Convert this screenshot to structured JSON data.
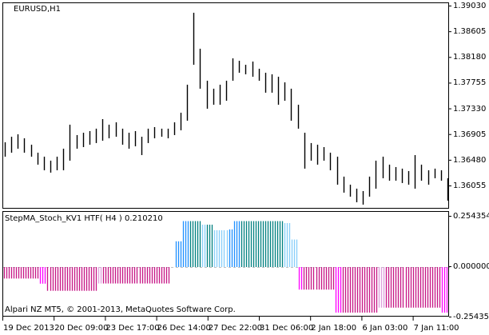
{
  "colors": {
    "price_bar": "#000000",
    "neg_strong": "#C71585",
    "neg_bright": "#FF00FF",
    "neg_light": "#DDA0DD",
    "pos_blue": "#1E90FF",
    "pos_teal": "#008080",
    "pos_light": "#87CEFA",
    "zero_line": "#C0C0C0"
  },
  "chart_data": [
    {
      "type": "bar",
      "style": "hl-bars",
      "title": "EURUSD,H1",
      "ylim": [
        1.3575,
        1.3903
      ],
      "y_ticks": [
        "1.39030",
        "1.38605",
        "1.38180",
        "1.37755",
        "1.37330",
        "1.36905",
        "1.36480",
        "1.36055"
      ],
      "grid": false,
      "high": [
        1.36783,
        1.36875,
        1.36915,
        1.36849,
        1.36743,
        1.36611,
        1.36545,
        1.36479,
        1.36545,
        1.36677,
        1.37074,
        1.36902,
        1.36941,
        1.36968,
        1.37008,
        1.37166,
        1.37074,
        1.37113,
        1.37008,
        1.36941,
        1.36968,
        1.36875,
        1.37008,
        1.37034,
        1.37008,
        1.37008,
        1.37113,
        1.37272,
        1.37735,
        1.38925,
        1.3833,
        1.37801,
        1.37669,
        1.37735,
        1.37801,
        1.38171,
        1.38131,
        1.38065,
        1.38118,
        1.37999,
        1.37933,
        1.37907,
        1.37867,
        1.37774,
        1.37669,
        1.37404,
        1.36941,
        1.3677,
        1.36743,
        1.36703,
        1.36611,
        1.36545,
        1.36215,
        1.36082,
        1.36016,
        1.35976,
        1.36215,
        1.36479,
        1.36545,
        1.36413,
        1.36373,
        1.36347,
        1.36307,
        1.36571,
        1.36413,
        1.3632,
        1.36347,
        1.3632,
        1.36188
      ],
      "low": [
        1.36545,
        1.36611,
        1.36677,
        1.36611,
        1.36545,
        1.36413,
        1.3632,
        1.36281,
        1.3632,
        1.3632,
        1.36479,
        1.36677,
        1.36703,
        1.36743,
        1.3677,
        1.36809,
        1.36849,
        1.36875,
        1.36743,
        1.36677,
        1.36716,
        1.36571,
        1.3677,
        1.36849,
        1.36875,
        1.36849,
        1.36902,
        1.36981,
        1.3714,
        1.38065,
        1.37669,
        1.37338,
        1.37404,
        1.37404,
        1.3747,
        1.37801,
        1.37933,
        1.37907,
        1.37867,
        1.37801,
        1.37603,
        1.37603,
        1.37404,
        1.3747,
        1.3714,
        1.37008,
        1.36347,
        1.36479,
        1.36413,
        1.36479,
        1.3632,
        1.36082,
        1.3595,
        1.35884,
        1.35791,
        1.35752,
        1.35884,
        1.36016,
        1.36188,
        1.36148,
        1.36148,
        1.36109,
        1.36082,
        1.36016,
        1.36148,
        1.36082,
        1.36188,
        1.36148,
        1.35818
      ]
    },
    {
      "type": "bar",
      "style": "histogram",
      "title": "StepMA_Stoch_KV1 HTF( H4 ) 0.210210",
      "ylim": [
        -0.254355,
        0.254354
      ],
      "y_ticks": [
        "0.254354",
        "0.000000",
        "-0.254355"
      ],
      "grid": false,
      "segments": [
        {
          "bars": 15,
          "value": -0.058,
          "color": "neg_strong"
        },
        {
          "bars": 3,
          "value": -0.084,
          "color": "neg_bright"
        },
        {
          "bars": 21,
          "value": -0.12,
          "color": "neg_strong"
        },
        {
          "bars": 2,
          "value": -0.083,
          "color": "neg_light"
        },
        {
          "bars": 28,
          "value": -0.083,
          "color": "neg_strong"
        },
        {
          "bars": 2,
          "value": 0,
          "color": "none"
        },
        {
          "bars": 3,
          "value": 0.13,
          "color": "pos_blue"
        },
        {
          "bars": 3,
          "value": 0.232,
          "color": "pos_blue"
        },
        {
          "bars": 5,
          "value": 0.232,
          "color": "pos_teal"
        },
        {
          "bars": 2,
          "value": 0.214,
          "color": "pos_light"
        },
        {
          "bars": 3,
          "value": 0.214,
          "color": "pos_teal"
        },
        {
          "bars": 6,
          "value": 0.186,
          "color": "pos_light"
        },
        {
          "bars": 2,
          "value": 0.19,
          "color": "pos_blue"
        },
        {
          "bars": 3,
          "value": 0.232,
          "color": "pos_blue"
        },
        {
          "bars": 18,
          "value": 0.232,
          "color": "pos_teal"
        },
        {
          "bars": 3,
          "value": 0.222,
          "color": "pos_light"
        },
        {
          "bars": 3,
          "value": 0.139,
          "color": "pos_light"
        },
        {
          "bars": 2,
          "value": -0.114,
          "color": "neg_bright"
        },
        {
          "bars": 13,
          "value": -0.114,
          "color": "neg_strong"
        },
        {
          "bars": 3,
          "value": -0.23,
          "color": "neg_bright"
        },
        {
          "bars": 15,
          "value": -0.23,
          "color": "neg_strong"
        },
        {
          "bars": 3,
          "value": -0.205,
          "color": "neg_light"
        },
        {
          "bars": 23,
          "value": -0.205,
          "color": "neg_strong"
        },
        {
          "bars": 3,
          "value": -0.23,
          "color": "neg_bright"
        }
      ]
    }
  ],
  "x_ticks": [
    "19 Dec 2013",
    "20 Dec 09:00",
    "23 Dec 17:00",
    "26 Dec 14:00",
    "27 Dec 22:00",
    "31 Dec 06:00",
    "2 Jan 18:00",
    "6 Jan 03:00",
    "7 Jan 11:00"
  ],
  "copyright": "Alpari NZ MT5, © 2001-2013, MetaQuotes Software Corp."
}
